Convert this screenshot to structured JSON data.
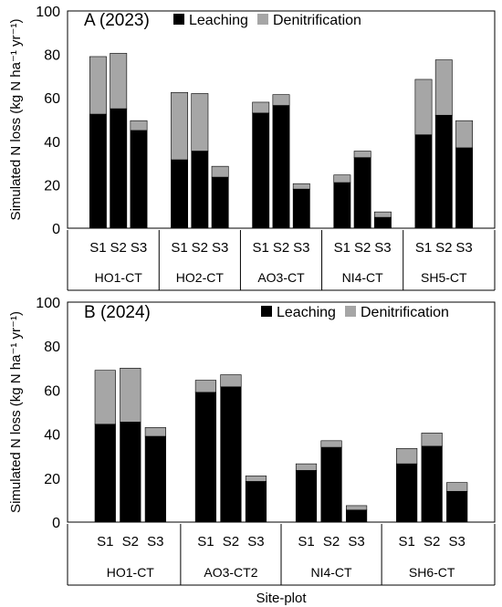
{
  "ylabel": "Simulated N loss (kg N ha⁻¹ yr⁻¹)",
  "xlabel": "Site-plot",
  "colors": {
    "leaching": "#000000",
    "denitrification": "#a6a6a6"
  },
  "chart_data": [
    {
      "type": "bar",
      "stacked": true,
      "title": "A (2023)",
      "ylim": [
        0,
        100
      ],
      "yticks": [
        0,
        20,
        40,
        60,
        80,
        100
      ],
      "legend": [
        "Leaching",
        "Denitrification"
      ],
      "groups": [
        {
          "name": "HO1-CT",
          "plots": [
            "S1",
            "S2",
            "S3"
          ],
          "leaching": [
            52.5,
            55,
            45
          ],
          "denitrification": [
            26.5,
            25.5,
            4.5
          ]
        },
        {
          "name": "HO2-CT",
          "plots": [
            "S1",
            "S2",
            "S3"
          ],
          "leaching": [
            31.5,
            35.5,
            23.5
          ],
          "denitrification": [
            31,
            26.5,
            5
          ]
        },
        {
          "name": "AO3-CT",
          "plots": [
            "S1",
            "S2",
            "S3"
          ],
          "leaching": [
            53,
            56.5,
            18
          ],
          "denitrification": [
            5,
            5,
            2.5
          ]
        },
        {
          "name": "NI4-CT",
          "plots": [
            "S1",
            "S2",
            "S3"
          ],
          "leaching": [
            21,
            32.5,
            5
          ],
          "denitrification": [
            3.5,
            3,
            2.5
          ]
        },
        {
          "name": "SH5-CT",
          "plots": [
            "S1",
            "S2",
            "S3"
          ],
          "leaching": [
            43,
            52,
            37
          ],
          "denitrification": [
            25.5,
            25.5,
            12.5
          ]
        }
      ]
    },
    {
      "type": "bar",
      "stacked": true,
      "title": "B (2024)",
      "ylim": [
        0,
        100
      ],
      "yticks": [
        0,
        20,
        40,
        60,
        80,
        100
      ],
      "legend": [
        "Leaching",
        "Denitrification"
      ],
      "groups": [
        {
          "name": "HO1-CT",
          "plots": [
            "S1",
            "S2",
            "S3"
          ],
          "leaching": [
            44.5,
            45.5,
            39
          ],
          "denitrification": [
            24.5,
            24.5,
            4
          ]
        },
        {
          "name": "AO3-CT2",
          "plots": [
            "S1",
            "S2",
            "S3"
          ],
          "leaching": [
            59,
            61.5,
            18.5
          ],
          "denitrification": [
            5.5,
            5.5,
            2.5
          ]
        },
        {
          "name": "NI4-CT",
          "plots": [
            "S1",
            "S2",
            "S3"
          ],
          "leaching": [
            23.5,
            34,
            5.5
          ],
          "denitrification": [
            3,
            3,
            2
          ]
        },
        {
          "name": "SH6-CT",
          "plots": [
            "S1",
            "S2",
            "S3"
          ],
          "leaching": [
            26.5,
            34.5,
            14
          ],
          "denitrification": [
            7,
            6,
            4
          ]
        }
      ]
    }
  ]
}
